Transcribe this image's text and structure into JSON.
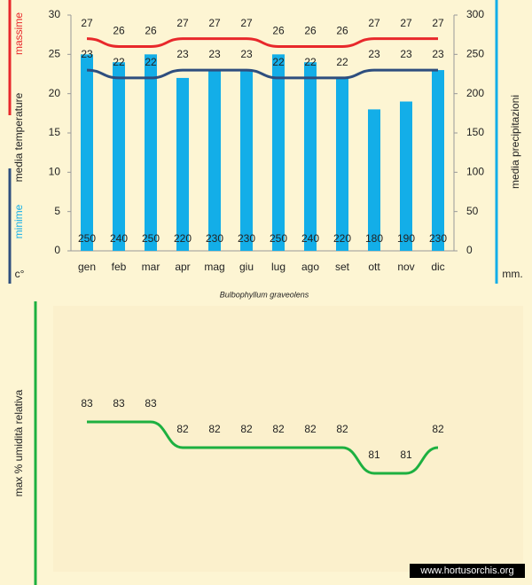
{
  "chart_data": [
    {
      "type": "combo",
      "title": "Bulbophyllum graveolens",
      "ylabel": "media temperature",
      "yunit": "c°",
      "y2unit": "mm.",
      "categories": [
        "gen",
        "feb",
        "mar",
        "apr",
        "mag",
        "giu",
        "lug",
        "ago",
        "set",
        "ott",
        "nov",
        "dic"
      ],
      "series": [
        {
          "name": "media precipitazioni",
          "type": "bar",
          "axis": "y2",
          "color": "#13aee8",
          "values": [
            250,
            240,
            250,
            220,
            230,
            230,
            250,
            240,
            220,
            180,
            190,
            230
          ]
        },
        {
          "name": "massime",
          "type": "line",
          "color": "#e8282b",
          "values": [
            27,
            26,
            26,
            27,
            27,
            27,
            26,
            26,
            26,
            27,
            27,
            27
          ]
        },
        {
          "name": "minime",
          "type": "line",
          "color": "#2e4e7e",
          "values": [
            23,
            22,
            22,
            23,
            23,
            23,
            22,
            22,
            22,
            23,
            23,
            23
          ]
        }
      ],
      "ylim": [
        0,
        30
      ],
      "yticks": [
        0,
        5,
        10,
        15,
        20,
        25,
        30
      ],
      "y2lim": [
        0,
        300
      ],
      "y2ticks": [
        0,
        50,
        100,
        150,
        200,
        250,
        300
      ],
      "grid": false
    },
    {
      "type": "line",
      "ylabel": "max % umidità relativa",
      "source": "www.hortusorchis.org",
      "series": [
        {
          "color": "#1db040",
          "values": [
            83,
            83,
            83,
            82,
            82,
            82,
            82,
            82,
            82,
            81,
            81,
            82
          ]
        }
      ],
      "ylim": [
        77,
        87
      ]
    }
  ]
}
